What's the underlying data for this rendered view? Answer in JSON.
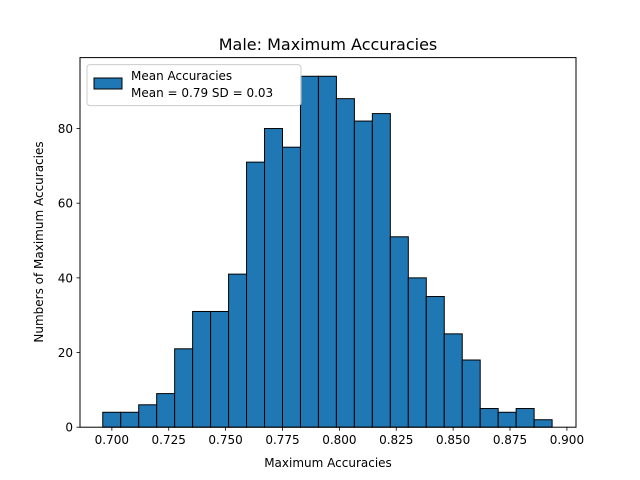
{
  "chart_data": {
    "type": "bar",
    "title": "Male: Maximum Accuracies",
    "xlabel": "Maximum Accuracies",
    "ylabel": "Numbers of Maximum Accuracies",
    "xlim": [
      0.686,
      0.904
    ],
    "ylim": [
      0,
      99
    ],
    "x_ticks": [
      0.7,
      0.725,
      0.75,
      0.775,
      0.8,
      0.825,
      0.85,
      0.875,
      0.9
    ],
    "x_tick_labels": [
      "0.700",
      "0.725",
      "0.750",
      "0.775",
      "0.800",
      "0.825",
      "0.850",
      "0.875",
      "0.900"
    ],
    "y_ticks": [
      0,
      20,
      40,
      60,
      80
    ],
    "y_tick_labels": [
      "0",
      "20",
      "40",
      "60",
      "80"
    ],
    "bin_start": 0.696,
    "bin_width": 0.0079,
    "values": [
      4,
      4,
      6,
      9,
      21,
      31,
      31,
      41,
      71,
      80,
      75,
      94,
      94,
      88,
      82,
      84,
      51,
      40,
      35,
      25,
      18,
      5,
      4,
      5,
      2
    ],
    "bar_color": "#1f77b4",
    "edge_color": "#000000",
    "legend": {
      "position": "top-left",
      "label_line1": "Mean Accuracies",
      "label_line2": "Mean = 0.79 SD = 0.03"
    }
  }
}
